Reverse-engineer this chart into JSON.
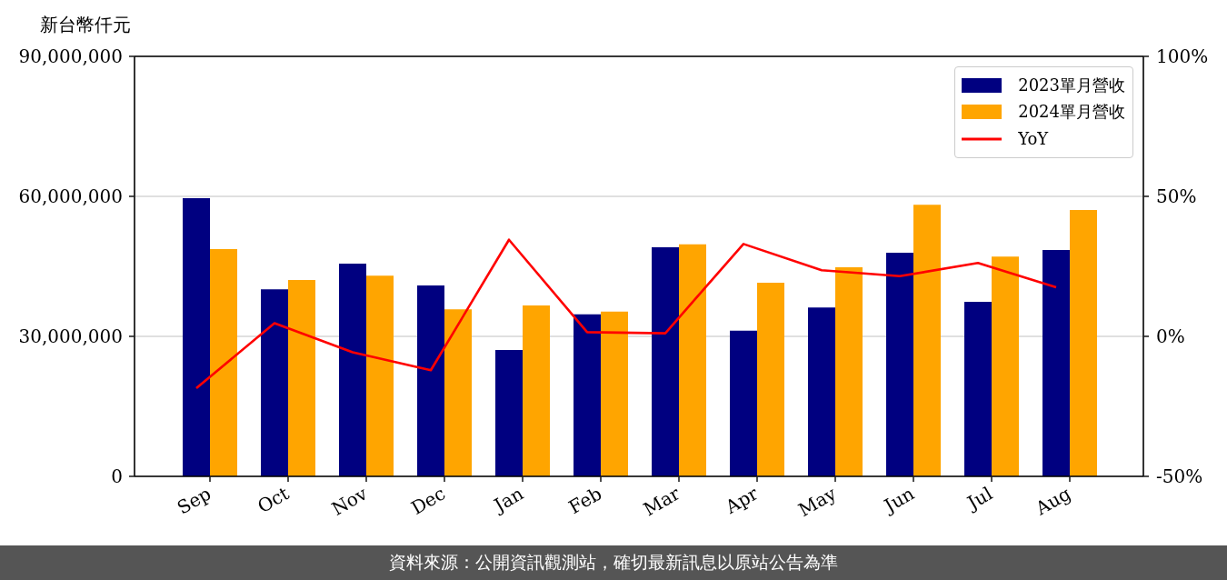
{
  "chart_data": {
    "type": "bar",
    "ylabel": "新台幣仟元",
    "annotations": [
      "資料來源：公開資訊觀測站，確切最新訊息以原站公告為準"
    ],
    "categories": [
      "Sep",
      "Oct",
      "Nov",
      "Dec",
      "Jan",
      "Feb",
      "Mar",
      "Apr",
      "May",
      "Jun",
      "Jul",
      "Aug"
    ],
    "series": [
      {
        "name": "2023單月營收",
        "color": "#000080",
        "values": [
          59600000,
          40100000,
          45600000,
          40900000,
          27100000,
          34700000,
          49100000,
          31200000,
          36200000,
          47900000,
          37400000,
          48500000
        ]
      },
      {
        "name": "2024單月營收",
        "color": "#ffa500",
        "values": [
          48700000,
          42100000,
          43000000,
          35800000,
          36600000,
          35300000,
          49700000,
          41500000,
          44800000,
          58200000,
          47100000,
          57100000
        ]
      },
      {
        "name": "YoY",
        "type": "line",
        "axis": "y2",
        "color": "#ff0000",
        "values": [
          -18.5,
          4.7,
          -5.7,
          -12.1,
          34.5,
          1.5,
          1.1,
          33.0,
          23.6,
          21.5,
          26.2,
          17.5
        ]
      }
    ],
    "ylim": [
      0,
      90000000
    ],
    "yticks": [
      {
        "value": 0,
        "label": "0"
      },
      {
        "value": 30000000,
        "label": "30,000,000"
      },
      {
        "value": 60000000,
        "label": "60,000,000"
      },
      {
        "value": 90000000,
        "label": "90,000,000"
      }
    ],
    "y2lim": [
      -50,
      100
    ],
    "y2ticks": [
      {
        "value": -50,
        "label": "-50%"
      },
      {
        "value": 0,
        "label": "0%"
      },
      {
        "value": 50,
        "label": "50%"
      },
      {
        "value": 100,
        "label": "100%"
      }
    ],
    "grid": "y",
    "legend": "top right"
  }
}
